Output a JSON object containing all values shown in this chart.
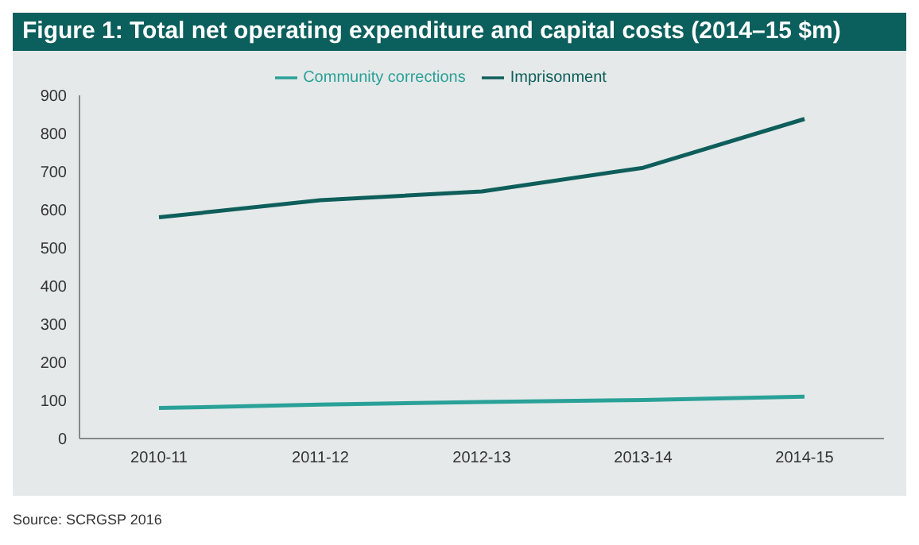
{
  "chart_data": {
    "type": "line",
    "title": "Figure 1: Total net operating expenditure and capital costs (2014–15 $m)",
    "categories": [
      "2010-11",
      "2011-12",
      "2012-13",
      "2013-14",
      "2014-15"
    ],
    "series": [
      {
        "name": "Imprisonment",
        "color": "#0e5e5b",
        "values": [
          580,
          625,
          648,
          710,
          838
        ]
      },
      {
        "name": "Community corrections",
        "color": "#2aa198",
        "values": [
          80,
          89,
          96,
          101,
          110
        ]
      }
    ],
    "ylim": [
      0,
      900
    ],
    "yticks": [
      0,
      100,
      200,
      300,
      400,
      500,
      600,
      700,
      800,
      900
    ],
    "grid": false,
    "legend": "top",
    "marker": "none",
    "line_style": "solid",
    "annotations": [
      "Source: SCRGSP 2016"
    ]
  }
}
